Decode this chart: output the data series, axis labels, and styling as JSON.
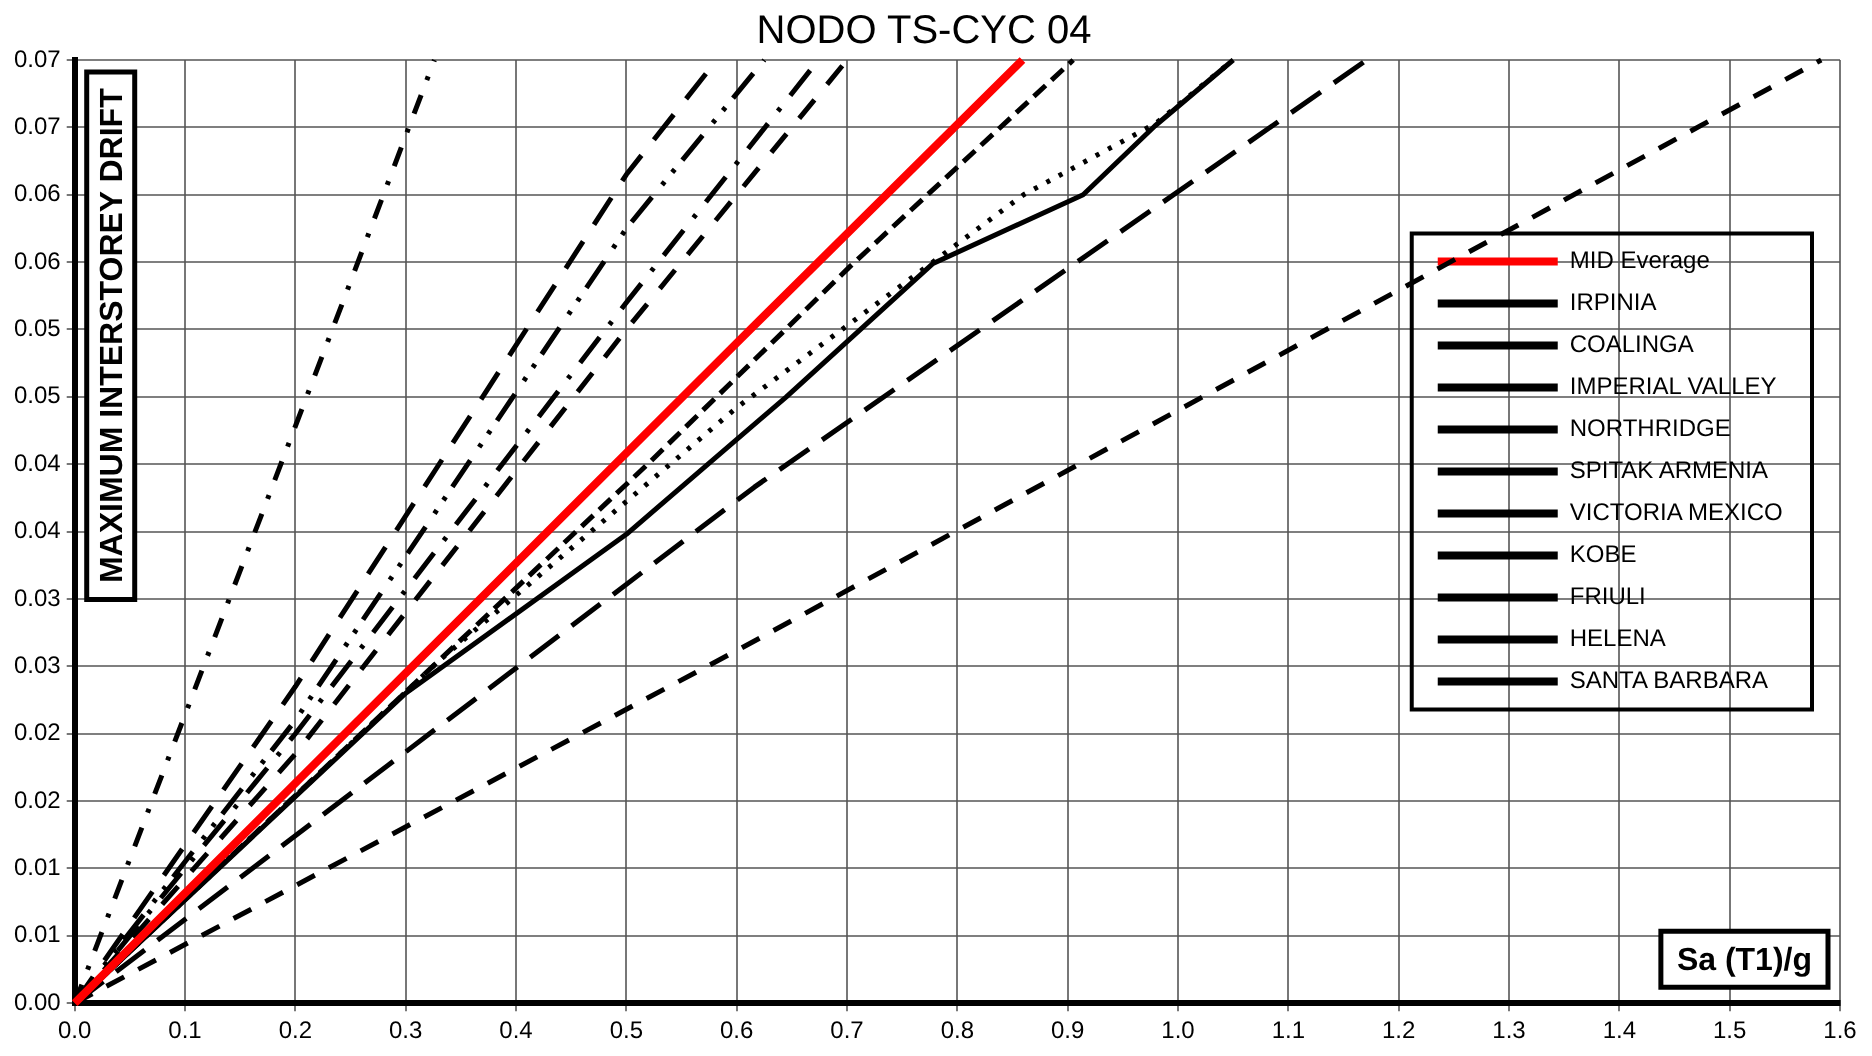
{
  "chart_data": {
    "type": "line",
    "title": "NODO TS-CYC 04",
    "xlabel": "Sa (T1)/g",
    "ylabel": "MAXIMUM INTERSTOREY DRIFT",
    "xlim": [
      0,
      1.6
    ],
    "xticks": [
      {
        "value": 0,
        "label": "0.0"
      },
      0.1,
      0.2,
      0.3,
      0.4,
      0.5,
      0.6,
      0.7,
      0.8,
      0.9,
      {
        "value": 1,
        "label": "1.0"
      },
      1.1,
      1.2,
      1.3,
      1.4,
      1.5,
      1.6
    ],
    "ylim": [
      0,
      0.07
    ],
    "yticks": [
      {
        "value": 0,
        "label": "0.00"
      },
      {
        "value": 0.005,
        "label": "0.01"
      },
      {
        "value": 0.01,
        "label": "0.01"
      },
      {
        "value": 0.015,
        "label": "0.02"
      },
      {
        "value": 0.02,
        "label": "0.02"
      },
      {
        "value": 0.025,
        "label": "0.03"
      },
      {
        "value": 0.03,
        "label": "0.03"
      },
      {
        "value": 0.035,
        "label": "0.04"
      },
      {
        "value": 0.04,
        "label": "0.04"
      },
      {
        "value": 0.045,
        "label": "0.05"
      },
      {
        "value": 0.05,
        "label": "0.05"
      },
      {
        "value": 0.055,
        "label": "0.06"
      },
      {
        "value": 0.06,
        "label": "0.06"
      },
      {
        "value": 0.065,
        "label": "0.07"
      },
      0.07
    ],
    "grid": true,
    "legend": "right",
    "marker": "none",
    "series": [
      {
        "name": "MID Everage",
        "color": "#ff0000",
        "line_style": "solid",
        "x": [
          0,
          0.3,
          0.6,
          0.859
        ],
        "values": [
          0,
          0.0245,
          0.049,
          0.07
        ]
      },
      {
        "name": "IRPINIA",
        "color": "#000000",
        "line_style": "dotted",
        "x": [
          0,
          0.33,
          0.6,
          0.86,
          0.98,
          1.05
        ],
        "values": [
          0,
          0.0254,
          0.0442,
          0.06,
          0.0653,
          0.07
        ]
      },
      {
        "name": "COALINGA",
        "color": "#000000",
        "line_style": "dashed",
        "x": [
          0,
          0.518,
          0.703,
          0.905
        ],
        "values": [
          0,
          0.0399,
          0.0547,
          0.07
        ]
      },
      {
        "name": "IMPERIAL VALLEY",
        "color": "#000000",
        "line_style": "dashed",
        "x": [
          0,
          0.2,
          0.5,
          0.7
        ],
        "values": [
          0,
          0.0185,
          0.05,
          0.07
        ]
      },
      {
        "name": "NORTHRIDGE",
        "color": "#000000",
        "line_style": "solid",
        "x": [
          0,
          0.3,
          0.5,
          0.645,
          0.778,
          0.914,
          0.979,
          1.05
        ],
        "values": [
          0,
          0.023,
          0.0348,
          0.045,
          0.0549,
          0.06,
          0.0651,
          0.07
        ]
      },
      {
        "name": "SPITAK ARMENIA",
        "color": "#000000",
        "line_style": "dashed",
        "x": [
          0,
          0.241,
          0.326
        ],
        "values": [
          0,
          0.0516,
          0.07
        ]
      },
      {
        "name": "VICTORIA MEXICO",
        "color": "#000000",
        "line_style": "dashed",
        "x": [
          0,
          0.2,
          0.5,
          0.582
        ],
        "values": [
          0,
          0.0235,
          0.0615,
          0.07
        ]
      },
      {
        "name": "KOBE",
        "color": "#000000",
        "line_style": "dashed",
        "x": [
          0,
          0.2,
          0.5,
          0.674
        ],
        "values": [
          0,
          0.02,
          0.052,
          0.07
        ]
      },
      {
        "name": "FRIULI",
        "color": "#000000",
        "line_style": "dashed",
        "x": [
          0,
          0.616,
          1.171
        ],
        "values": [
          0,
          0.0383,
          0.07
        ]
      },
      {
        "name": "HELENA",
        "color": "#000000",
        "line_style": "dashed",
        "x": [
          0,
          0.2,
          0.5,
          0.625
        ],
        "values": [
          0,
          0.021,
          0.0575,
          0.07
        ]
      },
      {
        "name": "SANTA BARBARA",
        "color": "#000000",
        "line_style": "dashed",
        "x": [
          0,
          0.603,
          1.583
        ],
        "values": [
          0,
          0.0263,
          0.07
        ]
      }
    ]
  }
}
